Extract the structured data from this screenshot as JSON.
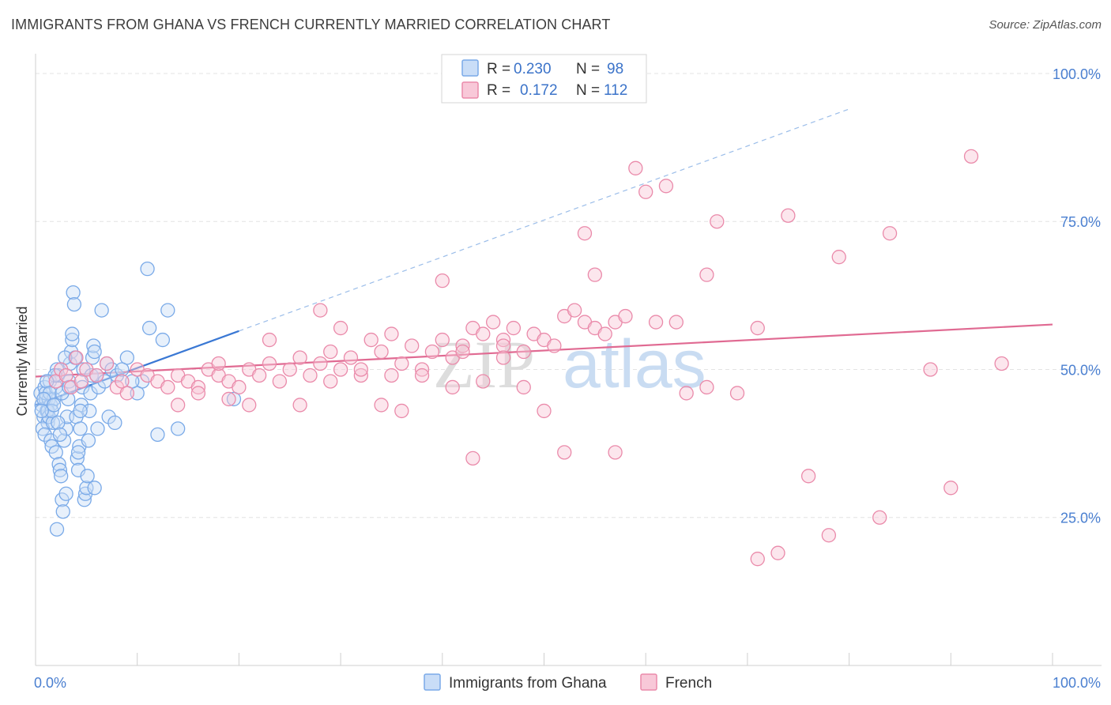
{
  "chart_data": {
    "type": "scatter",
    "title": "IMMIGRANTS FROM GHANA VS FRENCH CURRENTLY MARRIED CORRELATION CHART",
    "source": "Source: ZipAtlas.com",
    "xlabel": "",
    "ylabel": "Currently Married",
    "xlim": [
      0,
      100
    ],
    "ylim": [
      0,
      102
    ],
    "x_ticks": [
      {
        "value": 0,
        "label": "0.0%"
      },
      {
        "value": 100,
        "label": "100.0%"
      }
    ],
    "y_ticks": [
      {
        "value": 25,
        "label": "25.0%"
      },
      {
        "value": 50,
        "label": "50.0%"
      },
      {
        "value": 75,
        "label": "75.0%"
      },
      {
        "value": 100,
        "label": "100.0%"
      }
    ],
    "grid": true,
    "watermark": {
      "part1": "ZIP",
      "part2": "atlas"
    },
    "legend_position": "top-center",
    "stats": [
      {
        "r_label": "R =",
        "r_value": "0.230",
        "n_label": "N =",
        "n_value": "98"
      },
      {
        "r_label": "R =",
        "r_value": "0.172",
        "n_label": "N =",
        "n_value": "112"
      }
    ],
    "series": [
      {
        "name": "Immigrants from Ghana",
        "color": "#7aaae8",
        "fill": "#c9ddf7",
        "trend": {
          "x0": 0,
          "y0": 44,
          "x1": 20,
          "y1": 56.5,
          "dash_to_x": 80,
          "dash_to_y": 94
        },
        "points": [
          [
            0.5,
            46
          ],
          [
            0.6,
            44
          ],
          [
            0.8,
            42
          ],
          [
            0.9,
            47
          ],
          [
            1.0,
            45
          ],
          [
            1.1,
            43
          ],
          [
            1.2,
            41
          ],
          [
            1.3,
            45
          ],
          [
            1.4,
            48
          ],
          [
            1.5,
            44
          ],
          [
            0.7,
            40
          ],
          [
            0.9,
            39
          ],
          [
            1.0,
            46
          ],
          [
            1.2,
            43
          ],
          [
            1.3,
            42
          ],
          [
            1.5,
            38
          ],
          [
            1.6,
            37
          ],
          [
            1.7,
            41
          ],
          [
            1.8,
            45
          ],
          [
            2.0,
            47
          ],
          [
            2.1,
            50
          ],
          [
            2.2,
            49
          ],
          [
            2.0,
            36
          ],
          [
            2.3,
            34
          ],
          [
            2.4,
            33
          ],
          [
            2.5,
            32
          ],
          [
            2.6,
            28
          ],
          [
            2.7,
            26
          ],
          [
            2.1,
            23
          ],
          [
            2.8,
            38
          ],
          [
            3.0,
            40
          ],
          [
            3.1,
            42
          ],
          [
            3.2,
            45
          ],
          [
            3.3,
            48
          ],
          [
            3.4,
            51
          ],
          [
            3.5,
            53
          ],
          [
            3.6,
            55
          ],
          [
            3.7,
            63
          ],
          [
            3.8,
            61
          ],
          [
            3.9,
            52
          ],
          [
            4.0,
            42
          ],
          [
            4.1,
            35
          ],
          [
            4.2,
            33
          ],
          [
            4.3,
            37
          ],
          [
            4.4,
            40
          ],
          [
            4.5,
            44
          ],
          [
            4.6,
            47
          ],
          [
            4.7,
            50
          ],
          [
            4.8,
            28
          ],
          [
            4.9,
            29
          ],
          [
            5.0,
            30
          ],
          [
            5.1,
            32
          ],
          [
            5.2,
            38
          ],
          [
            5.3,
            43
          ],
          [
            5.4,
            46
          ],
          [
            5.5,
            49
          ],
          [
            5.6,
            52
          ],
          [
            5.7,
            54
          ],
          [
            5.8,
            53
          ],
          [
            6.0,
            49
          ],
          [
            6.2,
            47
          ],
          [
            6.5,
            60
          ],
          [
            6.8,
            48
          ],
          [
            7.0,
            51
          ],
          [
            7.5,
            50
          ],
          [
            8.0,
            49
          ],
          [
            9.0,
            52
          ],
          [
            10.0,
            46
          ],
          [
            10.5,
            48
          ],
          [
            11.0,
            67
          ],
          [
            11.2,
            57
          ],
          [
            7.2,
            42
          ],
          [
            7.8,
            41
          ],
          [
            12.5,
            55
          ],
          [
            13.0,
            60
          ],
          [
            14.0,
            40
          ],
          [
            12.0,
            39
          ],
          [
            1.9,
            49
          ],
          [
            2.9,
            52
          ],
          [
            3.0,
            29
          ],
          [
            1.1,
            48
          ],
          [
            1.4,
            46
          ],
          [
            0.8,
            45
          ],
          [
            1.6,
            43
          ],
          [
            2.2,
            41
          ],
          [
            2.4,
            39
          ],
          [
            5.8,
            30
          ],
          [
            6.1,
            40
          ],
          [
            4.2,
            36
          ],
          [
            3.6,
            56
          ],
          [
            8.5,
            50
          ],
          [
            9.5,
            48
          ],
          [
            19.5,
            45
          ],
          [
            0.6,
            43
          ],
          [
            1.8,
            44
          ],
          [
            2.6,
            46
          ],
          [
            3.3,
            47
          ],
          [
            4.4,
            43
          ]
        ]
      },
      {
        "name": "French",
        "color": "#ea8aaa",
        "fill": "#f8c8d8",
        "trend": {
          "x0": 0,
          "y0": 48.8,
          "x1": 100,
          "y1": 57.6
        },
        "points": [
          [
            2,
            48
          ],
          [
            2.5,
            50
          ],
          [
            3,
            49
          ],
          [
            3.5,
            47
          ],
          [
            4,
            52
          ],
          [
            4.5,
            48
          ],
          [
            5,
            50
          ],
          [
            6,
            49
          ],
          [
            7,
            51
          ],
          [
            8,
            47
          ],
          [
            8.5,
            48
          ],
          [
            9,
            46
          ],
          [
            10,
            50
          ],
          [
            11,
            49
          ],
          [
            12,
            48
          ],
          [
            13,
            47
          ],
          [
            14,
            49
          ],
          [
            15,
            48
          ],
          [
            16,
            47
          ],
          [
            17,
            50
          ],
          [
            18,
            49
          ],
          [
            19,
            48
          ],
          [
            20,
            47
          ],
          [
            21,
            50
          ],
          [
            22,
            49
          ],
          [
            23,
            51
          ],
          [
            24,
            48
          ],
          [
            25,
            50
          ],
          [
            26,
            52
          ],
          [
            27,
            49
          ],
          [
            28,
            51
          ],
          [
            29,
            53
          ],
          [
            30,
            50
          ],
          [
            31,
            52
          ],
          [
            32,
            49
          ],
          [
            33,
            55
          ],
          [
            34,
            53
          ],
          [
            35,
            56
          ],
          [
            36,
            51
          ],
          [
            37,
            54
          ],
          [
            38,
            50
          ],
          [
            39,
            53
          ],
          [
            40,
            55
          ],
          [
            41,
            52
          ],
          [
            42,
            54
          ],
          [
            43,
            57
          ],
          [
            44,
            56
          ],
          [
            45,
            58
          ],
          [
            46,
            55
          ],
          [
            47,
            57
          ],
          [
            48,
            53
          ],
          [
            49,
            56
          ],
          [
            50,
            55
          ],
          [
            51,
            54
          ],
          [
            52,
            59
          ],
          [
            53,
            60
          ],
          [
            54,
            58
          ],
          [
            55,
            57
          ],
          [
            56,
            56
          ],
          [
            57,
            58
          ],
          [
            28,
            60
          ],
          [
            30,
            57
          ],
          [
            32,
            50
          ],
          [
            35,
            49
          ],
          [
            38,
            49
          ],
          [
            40,
            65
          ],
          [
            41,
            47
          ],
          [
            43,
            35
          ],
          [
            44,
            48
          ],
          [
            46,
            54
          ],
          [
            48,
            47
          ],
          [
            50,
            43
          ],
          [
            52,
            36
          ],
          [
            54,
            73
          ],
          [
            55,
            66
          ],
          [
            57,
            36
          ],
          [
            58,
            59
          ],
          [
            59,
            84
          ],
          [
            60,
            80
          ],
          [
            62,
            81
          ],
          [
            63,
            58
          ],
          [
            64,
            46
          ],
          [
            66,
            66
          ],
          [
            67,
            75
          ],
          [
            69,
            46
          ],
          [
            71,
            57
          ],
          [
            74,
            76
          ],
          [
            76,
            32
          ],
          [
            78,
            22
          ],
          [
            79,
            69
          ],
          [
            83,
            25
          ],
          [
            84,
            73
          ],
          [
            88,
            50
          ],
          [
            90,
            30
          ],
          [
            92,
            86
          ],
          [
            71,
            18
          ],
          [
            73,
            19
          ],
          [
            66,
            47
          ],
          [
            14,
            44
          ],
          [
            16,
            46
          ],
          [
            19,
            45
          ],
          [
            21,
            44
          ],
          [
            26,
            44
          ],
          [
            36,
            43
          ],
          [
            18,
            51
          ],
          [
            23,
            55
          ],
          [
            29,
            48
          ],
          [
            34,
            44
          ],
          [
            42,
            53
          ],
          [
            46,
            52
          ],
          [
            61,
            58
          ],
          [
            95,
            51
          ]
        ]
      }
    ]
  }
}
